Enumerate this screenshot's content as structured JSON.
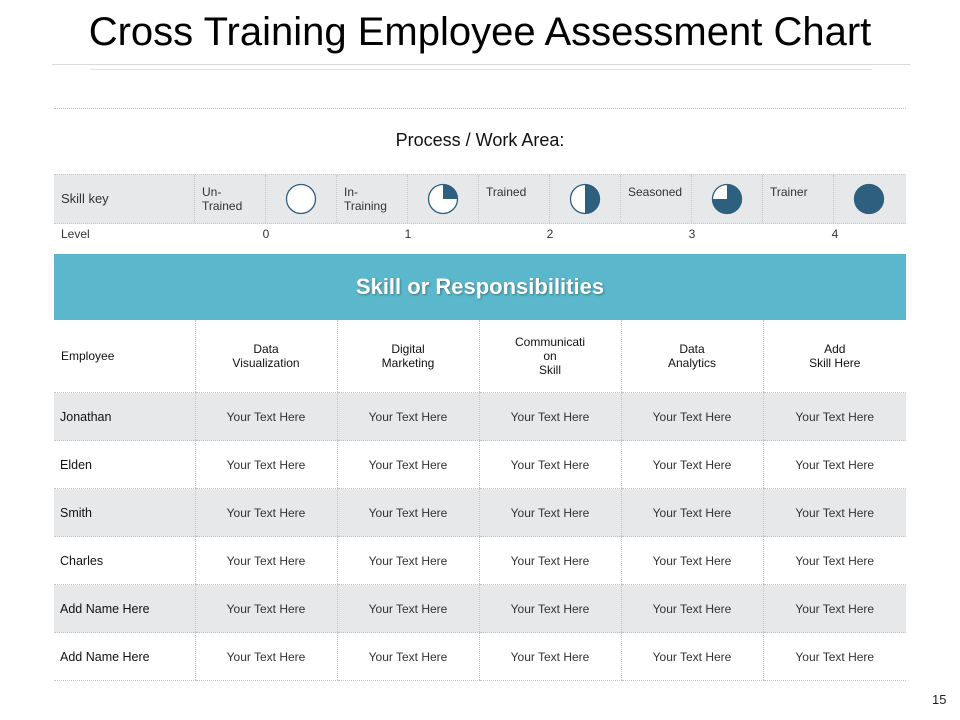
{
  "slide": {
    "title": "Cross Training Employee Assessment Chart",
    "process_label": "Process / Work Area:",
    "banner": "Skill or Responsibilities",
    "page_number": "15"
  },
  "skill_key": {
    "label": "Skill key",
    "levels": [
      {
        "name": "Un-\nTrained",
        "level": "0",
        "fill_fraction": 0
      },
      {
        "name": "In-\nTraining",
        "level": "1",
        "fill_fraction": 0.25
      },
      {
        "name": "Trained",
        "level": "2",
        "fill_fraction": 0.5
      },
      {
        "name": "Seasoned",
        "level": "3",
        "fill_fraction": 0.75
      },
      {
        "name": "Trainer",
        "level": "4",
        "fill_fraction": 1
      }
    ],
    "level_label": "Level",
    "icon_color": "#2e5f7e"
  },
  "table": {
    "header": [
      "Employee",
      "Data\nVisualization",
      "Digital\nMarketing",
      "Communicati\non\nSkill",
      "Data\nAnalytics",
      "Add\nSkill Here"
    ],
    "rows": [
      [
        "Jonathan",
        "Your Text Here",
        "Your Text Here",
        "Your Text Here",
        "Your Text Here",
        "Your Text Here"
      ],
      [
        "Elden",
        "Your Text Here",
        "Your Text Here",
        "Your Text Here",
        "Your Text Here",
        "Your Text Here"
      ],
      [
        "Smith",
        "Your Text Here",
        "Your Text Here",
        "Your Text Here",
        "Your Text Here",
        "Your Text Here"
      ],
      [
        "Charles",
        "Your Text Here",
        "Your Text Here",
        "Your Text Here",
        "Your Text Here",
        "Your Text Here"
      ],
      [
        "Add Name Here",
        "Your Text Here",
        "Your Text Here",
        "Your Text Here",
        "Your Text Here",
        "Your Text Here"
      ],
      [
        "Add Name Here",
        "Your Text Here",
        "Your Text Here",
        "Your Text Here",
        "Your Text Here",
        "Your Text Here"
      ]
    ]
  },
  "colors": {
    "banner": "#5bb8cc",
    "shade": "#e7e8ea",
    "icon": "#2e5f7e"
  }
}
